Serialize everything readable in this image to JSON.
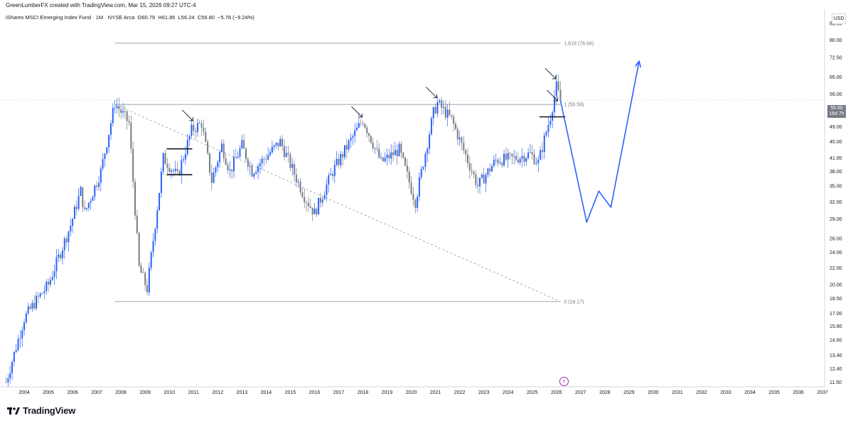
{
  "header": {
    "credit": "GreenLumberFX created with TradingView.com, Mar 15, 2026 09:27 UTC-4"
  },
  "legend": {
    "symbol": "iShares MSCI Emerging Index Fund · 1M · NYSE Arca",
    "open": "O60.79",
    "high": "H61.85",
    "low": "L56.24",
    "close": "C56.80",
    "change": "−5.78 (−9.24%)"
  },
  "currency": "USD",
  "price_badge": {
    "price": "56.80",
    "countdown": "16d 7h"
  },
  "brand": {
    "name": "TradingView"
  },
  "colors": {
    "up": "#2962ff",
    "down": "#787b86",
    "projection": "#2962ff",
    "level": "#9598a1",
    "badge": "#787b86"
  },
  "chart_data": {
    "type": "candlestick",
    "interval": "1M",
    "y_scale": "log",
    "ylim": [
      11.2,
      95
    ],
    "xlim": [
      "2003-01",
      "2037-02"
    ],
    "x_tick_labels": [
      "2004",
      "2005",
      "2006",
      "2007",
      "2008",
      "2009",
      "2010",
      "2011",
      "2012",
      "2013",
      "2014",
      "2015",
      "2016",
      "2017",
      "2018",
      "2019",
      "2020",
      "2021",
      "2022",
      "2023",
      "2024",
      "2025",
      "2026",
      "2027",
      "2028",
      "2029",
      "2030",
      "2031",
      "2032",
      "2033",
      "2034",
      "2035",
      "2036",
      "2037"
    ],
    "y_tick_labels": [
      "88.00",
      "80.00",
      "72.50",
      "65.00",
      "59.00",
      "53.00",
      "49.00",
      "45.00",
      "41.00",
      "38.00",
      "35.00",
      "32.00",
      "29.00",
      "26.00",
      "24.00",
      "22.00",
      "20.00",
      "18.50",
      "17.00",
      "15.80",
      "14.60",
      "13.40",
      "12.40",
      "11.50"
    ],
    "price_path": [
      [
        "2003-04",
        11.5
      ],
      [
        "2004-01",
        16.5
      ],
      [
        "2004-06",
        18.0
      ],
      [
        "2005-01",
        20.0
      ],
      [
        "2005-12",
        28.0
      ],
      [
        "2006-05",
        34.0
      ],
      [
        "2006-07",
        30.0
      ],
      [
        "2007-03",
        38.0
      ],
      [
        "2007-10",
        56.0
      ],
      [
        "2008-05",
        50.0
      ],
      [
        "2008-10",
        22.0
      ],
      [
        "2009-02",
        19.5
      ],
      [
        "2009-10",
        41.0
      ],
      [
        "2010-05",
        37.0
      ],
      [
        "2010-12",
        48.0
      ],
      [
        "2011-05",
        50.0
      ],
      [
        "2011-10",
        36.0
      ],
      [
        "2012-03",
        44.0
      ],
      [
        "2012-07",
        38.0
      ],
      [
        "2013-01",
        44.0
      ],
      [
        "2013-06",
        38.0
      ],
      [
        "2014-08",
        45.0
      ],
      [
        "2015-08",
        33.0
      ],
      [
        "2016-01",
        30.0
      ],
      [
        "2016-10",
        38.0
      ],
      [
        "2018-01",
        51.0
      ],
      [
        "2018-10",
        40.0
      ],
      [
        "2019-07",
        43.0
      ],
      [
        "2020-03",
        32.0
      ],
      [
        "2020-12",
        53.0
      ],
      [
        "2021-02",
        56.0
      ],
      [
        "2021-09",
        51.0
      ],
      [
        "2022-10",
        35.0
      ],
      [
        "2023-07",
        40.5
      ],
      [
        "2024-05",
        41.0
      ],
      [
        "2024-12",
        42.0
      ],
      [
        "2025-04",
        40.0
      ],
      [
        "2025-10",
        52.0
      ],
      [
        "2026-01",
        61.5
      ],
      [
        "2026-03",
        56.8
      ]
    ],
    "fib_levels": [
      {
        "label": "1.618 (78.68)",
        "value": 78.68
      },
      {
        "label": "1 (55.56)",
        "value": 55.56
      },
      {
        "label": "0 (18.17)",
        "value": 18.17
      }
    ],
    "fib_range": [
      "2007-10",
      "2026-03"
    ],
    "trendline": {
      "from": [
        "2007-10",
        55.56
      ],
      "to": [
        "2026-03",
        18.17
      ],
      "style": "dashed"
    },
    "projection": [
      [
        "2026-03",
        56.8
      ],
      [
        "2027-04",
        28.5
      ],
      [
        "2027-10",
        34.0
      ],
      [
        "2028-04",
        31.0
      ],
      [
        "2029-06",
        71.0
      ]
    ],
    "markers": [
      {
        "type": "arrow",
        "at": [
          "2011-01",
          50.5
        ]
      },
      {
        "type": "arrow",
        "at": [
          "2018-01",
          51.5
        ]
      },
      {
        "type": "arrow",
        "at": [
          "2021-02",
          57.5
        ]
      },
      {
        "type": "arrow",
        "at": [
          "2026-01",
          64.0
        ]
      },
      {
        "type": "arrow",
        "at": [
          "2026-02",
          56.5
        ]
      },
      {
        "type": "level",
        "at": [
          "2010-06",
          43.2
        ]
      },
      {
        "type": "level",
        "at": [
          "2010-06",
          37.3
        ]
      },
      {
        "type": "level",
        "at": [
          "2025-11",
          51.8
        ]
      }
    ],
    "last_price": 56.8
  }
}
